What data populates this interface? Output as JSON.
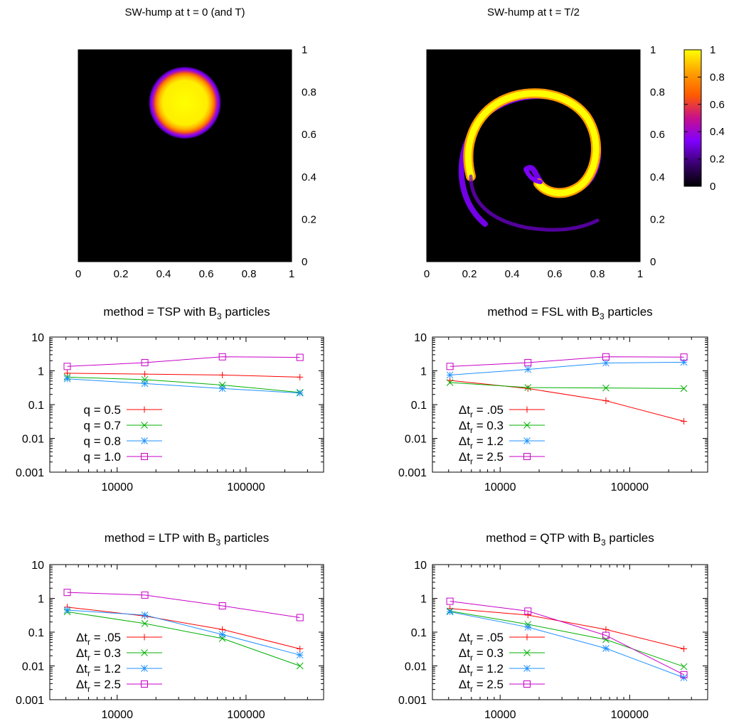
{
  "colors": {
    "red": "#ff0000",
    "green": "#00b000",
    "blue": "#1e90ff",
    "magenta": "#c800c8",
    "heat_low": "#000000",
    "heat_mid": "#8000ff",
    "heat_high": "#ffff00"
  },
  "chart_data": [
    {
      "type": "heatmap",
      "title": "SW-hump at t = 0 (and T)",
      "xlim": [
        0,
        1
      ],
      "ylim": [
        0,
        1
      ],
      "x_ticks": [
        "0",
        "0.2",
        "0.4",
        "0.6",
        "0.8",
        "1"
      ],
      "y_ticks": [
        "0",
        "0.2",
        "0.4",
        "0.6",
        "0.8",
        "1"
      ],
      "y_axis_side": "right",
      "feature": {
        "shape": "disk",
        "center": [
          0.5,
          0.75
        ],
        "radius": 0.15,
        "max_value": 1
      }
    },
    {
      "type": "heatmap",
      "title": "SW-hump at t = T/2",
      "xlim": [
        0,
        1
      ],
      "ylim": [
        0,
        1
      ],
      "x_ticks": [
        "0",
        "0.2",
        "0.4",
        "0.6",
        "0.8",
        "1"
      ],
      "y_ticks": [
        "0",
        "0.2",
        "0.4",
        "0.6",
        "0.8",
        "1"
      ],
      "y_axis_side": "right",
      "feature": {
        "shape": "spiral",
        "max_value": 1
      },
      "colorbar": {
        "range": [
          0,
          1
        ],
        "ticks": [
          "0",
          "0.2",
          "0.4",
          "0.6",
          "0.8",
          "1"
        ],
        "colormap": [
          "#000000",
          "#3a0070",
          "#8000ff",
          "#c8108c",
          "#ff5a00",
          "#ffa000",
          "#ffff00"
        ]
      }
    },
    {
      "type": "line",
      "title_main": "method = TSP with B",
      "title_sub": "3",
      "title_end": " particles",
      "x_scale": "log",
      "y_scale": "log",
      "xlim": [
        3000,
        400000
      ],
      "ylim": [
        0.001,
        10
      ],
      "x_ticks": [
        "10000",
        "100000"
      ],
      "y_ticks": [
        "0.001",
        "0.01",
        "0.1",
        "1",
        "10"
      ],
      "legend_position": "bottom-left",
      "x": [
        4096,
        16384,
        65536,
        262144
      ],
      "series": [
        {
          "name": "q = 0.5",
          "marker": "plus",
          "values": [
            0.85,
            0.8,
            0.75,
            0.65
          ]
        },
        {
          "name": "q = 0.7",
          "marker": "cross",
          "values": [
            0.65,
            0.55,
            0.38,
            0.23
          ]
        },
        {
          "name": "q = 0.8",
          "marker": "star",
          "values": [
            0.58,
            0.42,
            0.3,
            0.22
          ]
        },
        {
          "name": "q = 1.0",
          "marker": "square",
          "values": [
            1.35,
            1.75,
            2.6,
            2.5
          ]
        }
      ]
    },
    {
      "type": "line",
      "title_main": "method = FSL with B",
      "title_sub": "3",
      "title_end": " particles",
      "x_scale": "log",
      "y_scale": "log",
      "xlim": [
        3000,
        400000
      ],
      "ylim": [
        0.001,
        10
      ],
      "x_ticks": [
        "10000",
        "100000"
      ],
      "y_ticks": [
        "0.001",
        "0.01",
        "0.1",
        "1",
        "10"
      ],
      "legend_position": "bottom-left",
      "x": [
        4096,
        16384,
        65536,
        262144
      ],
      "series": [
        {
          "name_prefix": "Δt",
          "name_sub": "r",
          "name_suffix": " = .05",
          "marker": "plus",
          "values": [
            0.52,
            0.3,
            0.13,
            0.032
          ]
        },
        {
          "name_prefix": "Δt",
          "name_sub": "r",
          "name_suffix": " = 0.3",
          "marker": "cross",
          "values": [
            0.45,
            0.32,
            0.31,
            0.3
          ]
        },
        {
          "name_prefix": "Δt",
          "name_sub": "r",
          "name_suffix": " = 1.2",
          "marker": "star",
          "values": [
            0.75,
            1.1,
            1.7,
            1.8
          ]
        },
        {
          "name_prefix": "Δt",
          "name_sub": "r",
          "name_suffix": " = 2.5",
          "marker": "square",
          "values": [
            1.35,
            1.75,
            2.6,
            2.55
          ]
        }
      ]
    },
    {
      "type": "line",
      "title_main": "method = LTP with B",
      "title_sub": "3",
      "title_end": " particles",
      "x_scale": "log",
      "y_scale": "log",
      "xlim": [
        3000,
        400000
      ],
      "ylim": [
        0.001,
        10
      ],
      "x_ticks": [
        "10000",
        "100000"
      ],
      "y_ticks": [
        "0.001",
        "0.01",
        "0.1",
        "1",
        "10"
      ],
      "legend_position": "bottom-left",
      "x": [
        4096,
        16384,
        65536,
        262144
      ],
      "series": [
        {
          "name_prefix": "Δt",
          "name_sub": "r",
          "name_suffix": " = .05",
          "marker": "plus",
          "values": [
            0.55,
            0.3,
            0.12,
            0.032
          ]
        },
        {
          "name_prefix": "Δt",
          "name_sub": "r",
          "name_suffix": " = 0.3",
          "marker": "cross",
          "values": [
            0.4,
            0.18,
            0.065,
            0.01
          ]
        },
        {
          "name_prefix": "Δt",
          "name_sub": "r",
          "name_suffix": " = 1.2",
          "marker": "star",
          "values": [
            0.45,
            0.32,
            0.085,
            0.021
          ]
        },
        {
          "name_prefix": "Δt",
          "name_sub": "r",
          "name_suffix": " = 2.5",
          "marker": "square",
          "values": [
            1.5,
            1.25,
            0.6,
            0.27
          ]
        }
      ]
    },
    {
      "type": "line",
      "title_main": "method = QTP with B",
      "title_sub": "3",
      "title_end": " particles",
      "x_scale": "log",
      "y_scale": "log",
      "xlim": [
        3000,
        400000
      ],
      "ylim": [
        0.001,
        10
      ],
      "x_ticks": [
        "10000",
        "100000"
      ],
      "y_ticks": [
        "0.001",
        "0.01",
        "0.1",
        "1",
        "10"
      ],
      "legend_position": "bottom-left",
      "x": [
        4096,
        16384,
        65536,
        262144
      ],
      "series": [
        {
          "name_prefix": "Δt",
          "name_sub": "r",
          "name_suffix": " = .05",
          "marker": "plus",
          "values": [
            0.5,
            0.32,
            0.12,
            0.032
          ]
        },
        {
          "name_prefix": "Δt",
          "name_sub": "r",
          "name_suffix": " = 0.3",
          "marker": "cross",
          "values": [
            0.42,
            0.17,
            0.06,
            0.0095
          ]
        },
        {
          "name_prefix": "Δt",
          "name_sub": "r",
          "name_suffix": " = 1.2",
          "marker": "star",
          "values": [
            0.4,
            0.14,
            0.033,
            0.0045
          ]
        },
        {
          "name_prefix": "Δt",
          "name_sub": "r",
          "name_suffix": " = 2.5",
          "marker": "square",
          "values": [
            0.82,
            0.42,
            0.08,
            0.0055
          ]
        }
      ]
    }
  ]
}
